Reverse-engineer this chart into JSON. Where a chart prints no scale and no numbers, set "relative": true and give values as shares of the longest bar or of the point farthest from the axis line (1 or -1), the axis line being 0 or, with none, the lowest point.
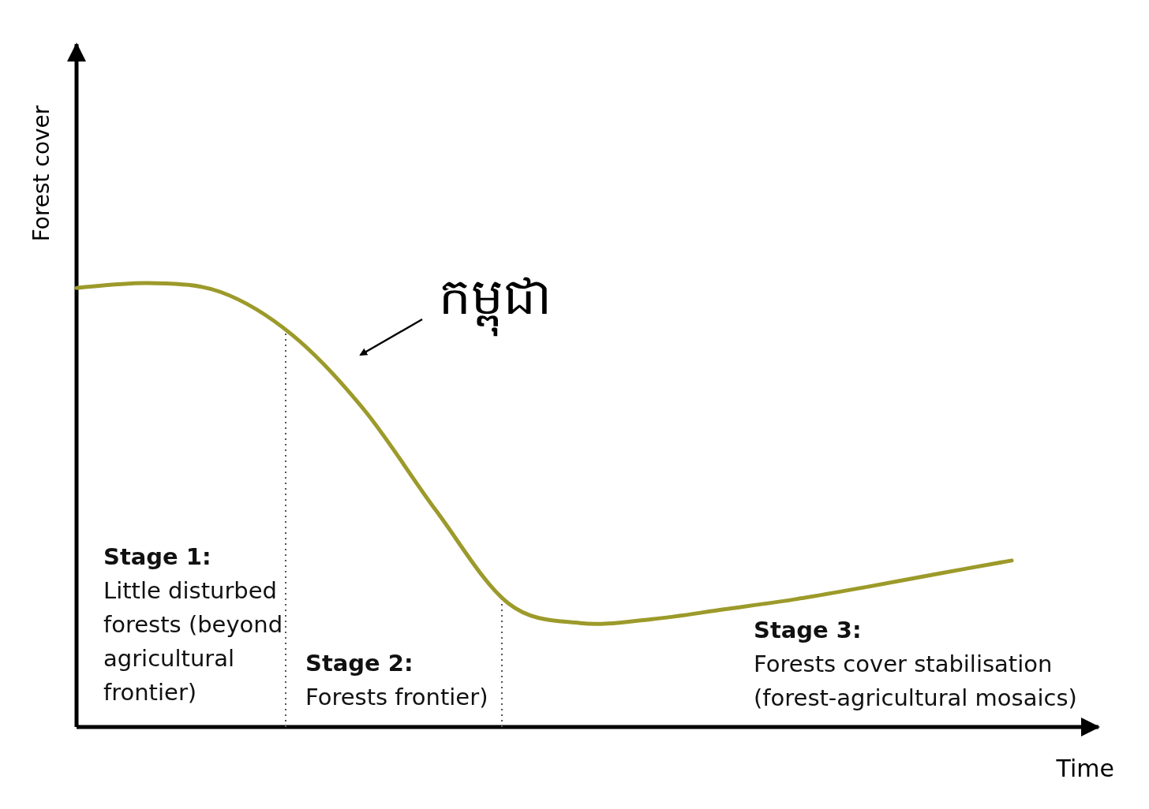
{
  "chart_data": {
    "type": "line",
    "relative": true,
    "xlabel": "Time",
    "ylabel": "Forest cover",
    "categories": [
      null,
      null,
      null,
      null,
      null,
      null,
      null,
      null,
      null,
      null,
      null,
      null,
      null,
      null
    ],
    "series": [
      {
        "color": "#9c9a2a",
        "values": [
          0.989,
          1.0,
          0.98,
          0.883,
          0.714,
          0.487,
          0.279,
          0.234,
          0.243,
          0.265,
          0.288,
          0.316,
          0.346,
          0.375
        ]
      }
    ],
    "line_style": "solid",
    "annotations": [
      "Stage 1:\nLittle disturbed\nforests (beyond\nagricultural\nfrontier)",
      "Stage 2:\nForests frontier)",
      "Stage 3:\nForests cover stabilisation\n(forest-agricultural mosaics)",
      "កម្ពុជា"
    ]
  }
}
